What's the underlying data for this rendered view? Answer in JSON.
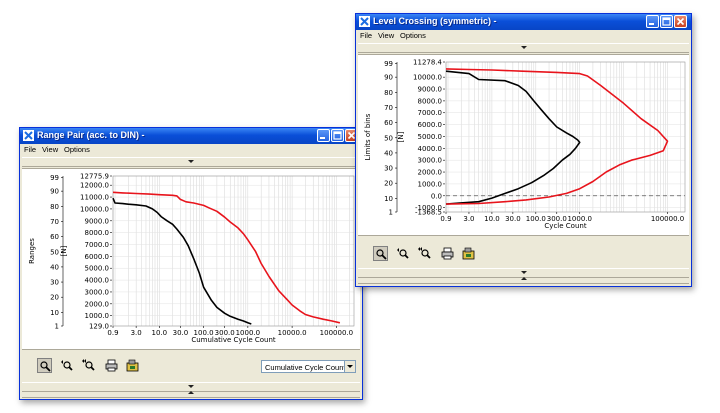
{
  "colors": {
    "series_black": "#000000",
    "series_red": "#e8141c",
    "title_bar": "#0a4fd8"
  },
  "windows": {
    "range_pair": {
      "title": "Range Pair (acc. to DIN) -",
      "menu": [
        "File",
        "View",
        "Options"
      ],
      "toolbar": [
        "zoom-icon",
        "zoom-prev-icon",
        "zoom-all-icon",
        "print-icon",
        "export-icon"
      ],
      "dropdown_value": "Cumulative Cycle Count"
    },
    "level_crossing": {
      "title": "Level Crossing (symmetric) -",
      "menu": [
        "File",
        "View",
        "Options"
      ],
      "toolbar": [
        "zoom-icon",
        "zoom-prev-icon",
        "zoom-all-icon",
        "print-icon",
        "export-icon"
      ]
    }
  },
  "chart_data": [
    {
      "type": "line",
      "window": "Range Pair (acc. to DIN) -",
      "xlabel": "Cumulative Cycle Count",
      "ylabel": "Ranges",
      "ylabel2": "[N]",
      "x_scale": "log",
      "x_ticks": [
        "0.9",
        "3.0",
        "10.0",
        "30.0",
        "100.0",
        "300.0",
        "1000.0",
        "10000.0",
        "100000.0"
      ],
      "x_tick_values": [
        0.9,
        3,
        10,
        30,
        100,
        300,
        1000,
        10000,
        100000
      ],
      "xlim": [
        0.9,
        250000
      ],
      "y_left_ticks": [
        "99",
        "90",
        "80",
        "70",
        "60",
        "50",
        "40",
        "30",
        "20",
        "10",
        "1"
      ],
      "y_left_values": [
        99,
        90,
        80,
        70,
        60,
        50,
        40,
        30,
        20,
        10,
        1
      ],
      "y_right_ticks": [
        "12775.9",
        "12000.0",
        "11000.0",
        "10000.0",
        "9000.0",
        "8000.0",
        "7000.0",
        "6000.0",
        "5000.0",
        "4000.0",
        "3000.0",
        "2000.0",
        "1000.0",
        "129.0"
      ],
      "y_right_values": [
        12775.9,
        12000,
        11000,
        10000,
        9000,
        8000,
        7000,
        6000,
        5000,
        4000,
        3000,
        2000,
        1000,
        129
      ],
      "ylim": [
        129.0,
        12775.9
      ],
      "grid": true,
      "series": [
        {
          "color": "#000000",
          "x": [
            0.9,
            1,
            1.5,
            2,
            3,
            5,
            7,
            9,
            11,
            15,
            20,
            25,
            35,
            45,
            60,
            80,
            100,
            150,
            200,
            300,
            400,
            600,
            800,
            1000,
            1200
          ],
          "y": [
            10900,
            10500,
            10450,
            10400,
            10350,
            10250,
            10000,
            9700,
            9350,
            9000,
            8700,
            8300,
            7600,
            6900,
            5800,
            4600,
            3400,
            2300,
            1700,
            1200,
            950,
            700,
            550,
            400,
            300
          ]
        },
        {
          "color": "#e8141c",
          "x": [
            0.9,
            1.5,
            3,
            6,
            10,
            20,
            25,
            30,
            40,
            60,
            100,
            130,
            200,
            300,
            400,
            600,
            800,
            1000,
            1500,
            2000,
            3000,
            5000,
            8000,
            10000,
            15000,
            20000,
            30000,
            50000,
            80000,
            120000
          ],
          "y": [
            11400,
            11350,
            11300,
            11250,
            11200,
            11150,
            11100,
            10800,
            10600,
            10500,
            10300,
            10100,
            9800,
            9300,
            8900,
            8400,
            7900,
            7400,
            6400,
            5400,
            4300,
            3100,
            2300,
            1900,
            1400,
            1100,
            900,
            700,
            550,
            400
          ]
        }
      ]
    },
    {
      "type": "line",
      "window": "Level Crossing (symmetric) -",
      "xlabel": "Cycle Count",
      "ylabel": "Limits of bins",
      "ylabel2": "[N]",
      "x_scale": "log",
      "x_ticks": [
        "0.9",
        "3.0",
        "10.0",
        "30.0",
        "100.0",
        "300.0",
        "1000.0",
        "100000.0"
      ],
      "x_tick_values": [
        0.9,
        3,
        10,
        30,
        100,
        300,
        1000,
        100000
      ],
      "xlim": [
        0.9,
        250000
      ],
      "y_left_ticks": [
        "99",
        "90",
        "80",
        "70",
        "60",
        "50",
        "40",
        "30",
        "20",
        "10",
        "1"
      ],
      "y_left_values": [
        99,
        90,
        80,
        70,
        60,
        50,
        40,
        30,
        20,
        10,
        1
      ],
      "y_right_ticks": [
        "11278.4",
        "10000.0",
        "9000.0",
        "8000.0",
        "7000.0",
        "6000.0",
        "5000.0",
        "4000.0",
        "3000.0",
        "2000.0",
        "1000.0",
        "0.0",
        "-1000.0",
        "-1368.5"
      ],
      "y_right_values": [
        11278.4,
        10000,
        9000,
        8000,
        7000,
        6000,
        5000,
        4000,
        3000,
        2000,
        1000,
        0,
        -1000,
        -1368.5
      ],
      "ylim": [
        -1368.5,
        11278.4
      ],
      "reference_line": 0,
      "grid": true,
      "series": [
        {
          "color": "#000000",
          "x": [
            0.9,
            3,
            5,
            20,
            40,
            60,
            90,
            130,
            200,
            300,
            500,
            700,
            900,
            1000,
            800,
            600,
            400,
            250,
            150,
            80,
            40,
            20,
            10,
            5,
            2,
            0.9
          ],
          "y": [
            10500,
            10300,
            9800,
            9700,
            9300,
            8800,
            8000,
            7300,
            6500,
            5800,
            5300,
            5000,
            4700,
            4500,
            4000,
            3500,
            3000,
            2300,
            1700,
            1100,
            600,
            200,
            -200,
            -500,
            -600,
            -700
          ]
        },
        {
          "color": "#e8141c",
          "x": [
            0.9,
            3,
            10,
            50,
            300,
            1000,
            1500,
            3000,
            10000,
            25000,
            60000,
            100000,
            80000,
            40000,
            15000,
            8000,
            4000,
            2000,
            1000,
            500,
            200,
            60,
            20,
            5,
            0.9
          ],
          "y": [
            10700,
            10650,
            10600,
            10500,
            10400,
            10300,
            10100,
            9300,
            7800,
            6500,
            5500,
            4600,
            3800,
            3400,
            3000,
            2600,
            2000,
            1200,
            600,
            200,
            -100,
            -350,
            -500,
            -650,
            -700
          ]
        }
      ]
    }
  ]
}
